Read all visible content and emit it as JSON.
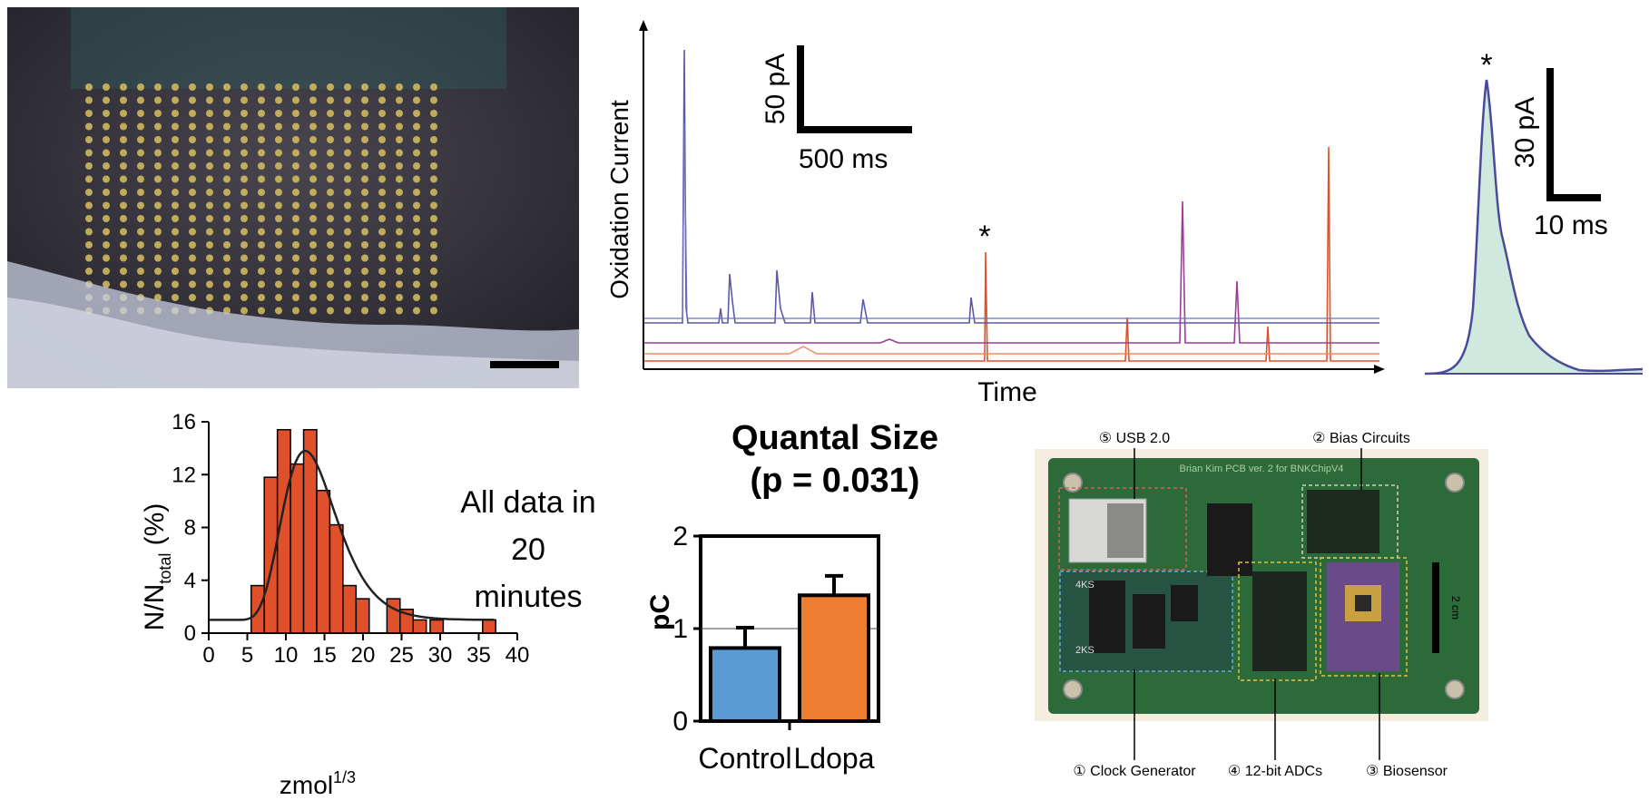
{
  "figure": {
    "traces_panel": {
      "ylabel": "Oxidation Current",
      "xlabel": "Time",
      "scalebar_current": "50 pA",
      "scalebar_time": "500 ms",
      "spike_marker": "*",
      "colors": {
        "blue": "#5a5aa8",
        "purple": "#9b3c9b",
        "red": "#e0502a",
        "orange": "#f08a5a"
      }
    },
    "zoom_panel": {
      "marker": "*",
      "scalebar_current": "30 pA",
      "scalebar_time": "10 ms",
      "fill_color": "#cfe9de",
      "line_color": "#4a4a9c"
    },
    "annotation": {
      "line1": "All data in",
      "line2": "20",
      "line3": "minutes"
    },
    "pcb": {
      "header": "Brian Kim PCB ver. 2 for BNKChipV4",
      "scale": "2 cm",
      "labels": [
        {
          "num": "⑤",
          "text": "USB 2.0"
        },
        {
          "num": "②",
          "text": "Bias Circuits"
        },
        {
          "num": "①",
          "text": "Clock Generator"
        },
        {
          "num": "④",
          "text": "12-bit ADCs"
        },
        {
          "num": "③",
          "text": "Biosensor"
        }
      ],
      "switch_labels": [
        "4KS",
        "2KS"
      ]
    }
  },
  "chart_data": [
    {
      "type": "bar",
      "xlabel": "zmol",
      "xlabel_sup": "1/3",
      "ylabel": "N/N",
      "ylabel_sub": "total",
      "ylabel_unit": " (%)",
      "xlim": [
        0,
        40
      ],
      "ylim": [
        0,
        16
      ],
      "x_ticks": [
        0,
        5,
        10,
        15,
        20,
        25,
        30,
        35,
        40
      ],
      "y_ticks": [
        0,
        4,
        8,
        12,
        16
      ],
      "bin_width": 1.7,
      "bins": [
        {
          "x": 5.5,
          "y": 3.6
        },
        {
          "x": 7.2,
          "y": 11.8
        },
        {
          "x": 8.9,
          "y": 15.4
        },
        {
          "x": 10.6,
          "y": 12.8
        },
        {
          "x": 12.3,
          "y": 15.4
        },
        {
          "x": 14.0,
          "y": 10.8
        },
        {
          "x": 15.7,
          "y": 8.2
        },
        {
          "x": 17.4,
          "y": 3.6
        },
        {
          "x": 19.1,
          "y": 2.6
        },
        {
          "x": 23.1,
          "y": 2.6
        },
        {
          "x": 24.8,
          "y": 1.8
        },
        {
          "x": 26.5,
          "y": 1.0
        },
        {
          "x": 28.7,
          "y": 1.0
        },
        {
          "x": 35.5,
          "y": 1.0
        }
      ],
      "fit": {
        "type": "log-normal fit",
        "peak_x": 12.5,
        "peak_y": 13.8,
        "baseline": 1.0
      },
      "bar_color": "#e0502a"
    },
    {
      "type": "bar",
      "title": "Quantal Size",
      "subtitle": "(p = 0.031)",
      "categories": [
        "Control",
        "Ldopa"
      ],
      "values": [
        0.79,
        1.36
      ],
      "errors": [
        0.22,
        0.21
      ],
      "ylabel": "pC",
      "ylim": [
        0,
        2
      ],
      "y_ticks": [
        0,
        1,
        2
      ],
      "reference_line": 1,
      "colors": [
        "#5b9bd5",
        "#ed7d31"
      ]
    }
  ]
}
